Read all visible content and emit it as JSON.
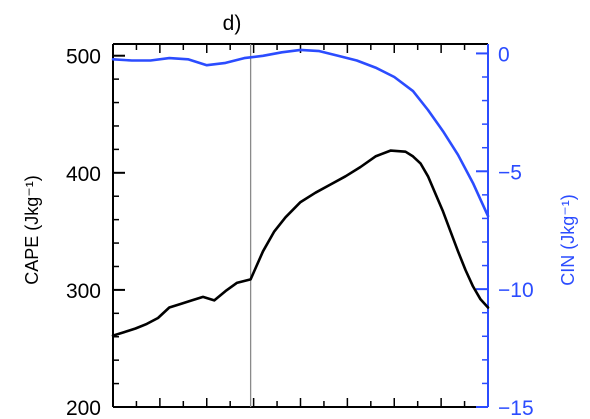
{
  "chart_data": {
    "type": "line",
    "panel_label": "d)",
    "x_ticks_labeled": false,
    "x_minor_tick_count": 16,
    "vertical_marker_x": 0.367,
    "left_axis": {
      "label": "CAPE  (Jkg⁻¹)",
      "ylim": [
        200,
        510
      ],
      "ticks": [
        200,
        300,
        400,
        500
      ],
      "tick_labels": [
        "200",
        "300",
        "400",
        "500"
      ],
      "color": "#000000"
    },
    "right_axis": {
      "label": "CIN  (Jkg⁻¹)",
      "ylim": [
        -15,
        0.4
      ],
      "ticks": [
        -15,
        -10,
        -5,
        0
      ],
      "tick_labels": [
        "−15",
        "−10",
        "−5",
        "0"
      ],
      "color": "#2b4cff"
    },
    "series": [
      {
        "axis": "left",
        "color": "#000000",
        "x": [
          0,
          0.03,
          0.06,
          0.09,
          0.12,
          0.15,
          0.18,
          0.21,
          0.24,
          0.27,
          0.3,
          0.33,
          0.367,
          0.4,
          0.43,
          0.46,
          0.5,
          0.54,
          0.58,
          0.62,
          0.66,
          0.7,
          0.74,
          0.78,
          0.8,
          0.82,
          0.84,
          0.86,
          0.88,
          0.9,
          0.92,
          0.94,
          0.96,
          0.98,
          1.0
        ],
        "y": [
          261,
          264,
          267,
          271,
          276,
          285,
          288,
          291,
          294,
          291,
          299,
          306,
          309,
          333,
          350,
          362,
          375,
          383,
          390,
          397,
          405,
          414,
          419,
          418,
          414,
          408,
          397,
          382,
          367,
          350,
          333,
          317,
          303,
          292,
          285
        ]
      },
      {
        "axis": "right",
        "color": "#2b4cff",
        "x": [
          0,
          0.05,
          0.1,
          0.15,
          0.2,
          0.25,
          0.3,
          0.35,
          0.4,
          0.45,
          0.5,
          0.55,
          0.6,
          0.65,
          0.7,
          0.75,
          0.8,
          0.84,
          0.88,
          0.92,
          0.96,
          1.0
        ],
        "y": [
          -0.25,
          -0.3,
          -0.3,
          -0.2,
          -0.25,
          -0.5,
          -0.4,
          -0.2,
          -0.1,
          0.05,
          0.15,
          0.1,
          -0.1,
          -0.3,
          -0.6,
          -1.0,
          -1.6,
          -2.4,
          -3.3,
          -4.3,
          -5.5,
          -6.9
        ]
      }
    ]
  }
}
